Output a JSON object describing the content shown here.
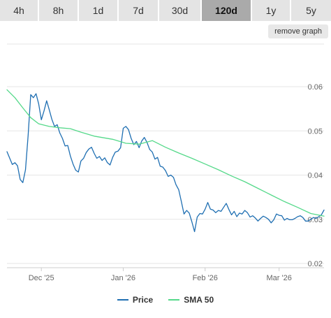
{
  "timeframe_tabs": [
    {
      "label": "4h",
      "active": false
    },
    {
      "label": "8h",
      "active": false
    },
    {
      "label": "1d",
      "active": false
    },
    {
      "label": "7d",
      "active": false
    },
    {
      "label": "30d",
      "active": false
    },
    {
      "label": "120d",
      "active": true
    },
    {
      "label": "1y",
      "active": false
    },
    {
      "label": "5y",
      "active": false
    }
  ],
  "remove_graph_label": "remove graph",
  "colors": {
    "price": "#1f6fb2",
    "sma": "#55d98a",
    "grid": "#e6e6e6"
  },
  "legend": {
    "price_label": "Price",
    "sma_label": "SMA 50"
  },
  "chart_data": {
    "type": "line",
    "title": "",
    "xlabel": "",
    "ylabel": "",
    "x_ticks": [
      {
        "label": "Dec '25",
        "day": 13
      },
      {
        "label": "Jan '26",
        "day": 44
      },
      {
        "label": "Feb '26",
        "day": 75
      },
      {
        "label": "Mar '26",
        "day": 103
      }
    ],
    "y_ticks": [
      "0.06",
      "0.05",
      "0.04",
      "0.03",
      "0.02"
    ],
    "ylim": [
      0.02,
      0.06
    ],
    "xlim": [
      0,
      120
    ],
    "grid": true,
    "legend_position": "bottom",
    "series": [
      {
        "name": "Price",
        "x": [
          0,
          2,
          3,
          4,
          5,
          6,
          7,
          8,
          9,
          10,
          11,
          12,
          13,
          14,
          15,
          16,
          17,
          18,
          19,
          20,
          21,
          22,
          23,
          24,
          25,
          26,
          27,
          28,
          29,
          30,
          31,
          32,
          33,
          34,
          35,
          36,
          37,
          38,
          39,
          40,
          41,
          42,
          43,
          44,
          45,
          46,
          47,
          48,
          49,
          50,
          51,
          52,
          53,
          54,
          55,
          56,
          57,
          58,
          59,
          60,
          61,
          62,
          63,
          64,
          65,
          66,
          67,
          68,
          69,
          70,
          71,
          72,
          73,
          74,
          75,
          76,
          77,
          78,
          79,
          80,
          81,
          82,
          83,
          84,
          85,
          86,
          87,
          88,
          89,
          90,
          91,
          92,
          93,
          94,
          95,
          96,
          97,
          98,
          99,
          100,
          101,
          102,
          103,
          104,
          105,
          106,
          107,
          108,
          109,
          110,
          111,
          112,
          113,
          114,
          115,
          116,
          117,
          118,
          119,
          120
        ],
        "values": [
          0.0453,
          0.0424,
          0.0428,
          0.0421,
          0.039,
          0.0383,
          0.0412,
          0.049,
          0.0582,
          0.0575,
          0.0584,
          0.0561,
          0.0525,
          0.0545,
          0.0568,
          0.0548,
          0.0526,
          0.051,
          0.0514,
          0.0495,
          0.0483,
          0.0466,
          0.0467,
          0.0443,
          0.0425,
          0.0411,
          0.0407,
          0.0432,
          0.0438,
          0.0451,
          0.0459,
          0.0463,
          0.0449,
          0.0438,
          0.0442,
          0.0433,
          0.0439,
          0.0428,
          0.0423,
          0.044,
          0.0452,
          0.0454,
          0.0462,
          0.0506,
          0.051,
          0.0503,
          0.0483,
          0.0469,
          0.0476,
          0.0462,
          0.0477,
          0.0485,
          0.0474,
          0.0458,
          0.0452,
          0.0436,
          0.044,
          0.042,
          0.0418,
          0.041,
          0.0397,
          0.04,
          0.0395,
          0.0378,
          0.0367,
          0.034,
          0.0312,
          0.032,
          0.0314,
          0.0294,
          0.0272,
          0.0305,
          0.0313,
          0.0312,
          0.0323,
          0.0338,
          0.0323,
          0.0321,
          0.0315,
          0.032,
          0.0318,
          0.0327,
          0.0336,
          0.0322,
          0.031,
          0.0318,
          0.0306,
          0.0314,
          0.0312,
          0.032,
          0.0315,
          0.0305,
          0.0308,
          0.0303,
          0.0296,
          0.0302,
          0.0307,
          0.0304,
          0.03,
          0.0292,
          0.0299,
          0.0312,
          0.0309,
          0.0308,
          0.0298,
          0.0302,
          0.0299,
          0.0299,
          0.0302,
          0.0306,
          0.0308,
          0.0304,
          0.0296,
          0.0296,
          0.03,
          0.0304,
          0.0302,
          0.0306,
          0.031,
          0.0321
        ]
      },
      {
        "name": "SMA 50",
        "x": [
          0,
          3,
          6,
          9,
          12,
          16,
          20,
          24,
          28,
          33,
          40,
          45,
          50,
          55,
          60,
          65,
          70,
          75,
          80,
          85,
          90,
          95,
          100,
          105,
          110,
          115,
          120
        ],
        "values": [
          0.0593,
          0.0575,
          0.0552,
          0.053,
          0.0516,
          0.051,
          0.0507,
          0.0505,
          0.0497,
          0.0488,
          0.0481,
          0.0472,
          0.047,
          0.0478,
          0.0463,
          0.045,
          0.0438,
          0.0425,
          0.0412,
          0.0398,
          0.0385,
          0.037,
          0.0355,
          0.034,
          0.0327,
          0.0313,
          0.0307
        ]
      }
    ]
  }
}
